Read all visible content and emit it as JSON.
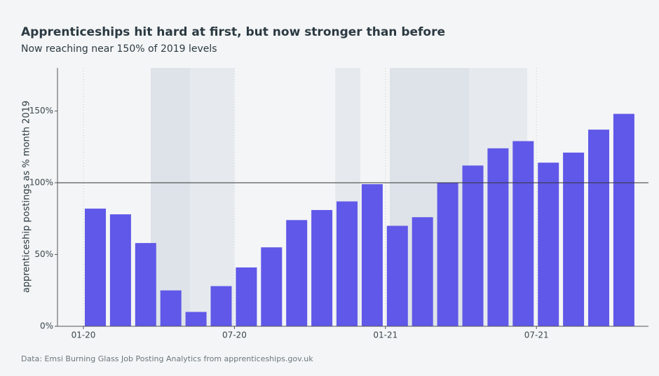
{
  "chart_data": {
    "type": "bar",
    "title": "Apprenticeships hit hard at first, but now stronger than before",
    "subtitle": "Now reaching near 150% of 2019 levels",
    "y_label": "apprenticeship postings as % month 2019",
    "source": "Data: Emsi Burning Glass Job Posting Analytics from apprenticeships.gov.uk",
    "categories": [
      "01-20",
      null,
      null,
      null,
      null,
      null,
      "07-20",
      null,
      null,
      null,
      null,
      null,
      "01-21",
      null,
      null,
      null,
      null,
      null,
      "07-21",
      null,
      null,
      null
    ],
    "values": [
      82,
      78,
      58,
      25,
      10,
      28,
      41,
      55,
      74,
      81,
      87,
      99,
      70,
      76,
      100,
      112,
      124,
      129,
      114,
      121,
      137,
      148
    ],
    "color": "#6058e8",
    "ylim": [
      0,
      180
    ],
    "yticks": [
      {
        "value": 0,
        "label": "0%"
      },
      {
        "value": 50,
        "label": "50%"
      },
      {
        "value": 100,
        "label": "100%"
      },
      {
        "value": 150,
        "label": "150%"
      }
    ],
    "reference_line": 100,
    "grid": true
  }
}
